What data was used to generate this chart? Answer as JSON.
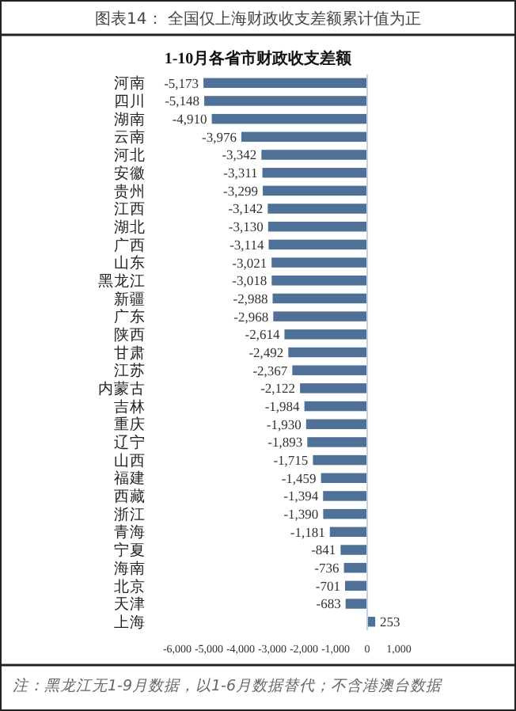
{
  "chart_data": {
    "type": "bar",
    "orientation": "horizontal",
    "title": "图表14：  全国仅上海财政收支差额累计值为正",
    "subtitle": "1-10月各省市财政收支差额",
    "categories": [
      "河南",
      "四川",
      "湖南",
      "云南",
      "河北",
      "安徽",
      "贵州",
      "江西",
      "湖北",
      "广西",
      "山东",
      "黑龙江",
      "新疆",
      "广东",
      "陕西",
      "甘肃",
      "江苏",
      "内蒙古",
      "吉林",
      "重庆",
      "辽宁",
      "山西",
      "福建",
      "西藏",
      "浙江",
      "青海",
      "宁夏",
      "海南",
      "北京",
      "天津",
      "上海"
    ],
    "values": [
      -5173,
      -5148,
      -4910,
      -3976,
      -3342,
      -3311,
      -3299,
      -3142,
      -3130,
      -3114,
      -3021,
      -3018,
      -2988,
      -2968,
      -2614,
      -2492,
      -2367,
      -2122,
      -1984,
      -1930,
      -1893,
      -1715,
      -1459,
      -1394,
      -1390,
      -1181,
      -841,
      -736,
      -701,
      -683,
      253
    ],
    "value_labels": [
      "-5,173",
      "-5,148",
      "-4,910",
      "-3,976",
      "-3,342",
      "-3,311",
      "-3,299",
      "-3,142",
      "-3,130",
      "-3,114",
      "-3,021",
      "-3,018",
      "-2,988",
      "-2,968",
      "-2,614",
      "-2,492",
      "-2,367",
      "-2,122",
      "-1,984",
      "-1,930",
      "-1,893",
      "-1,715",
      "-1,459",
      "-1,394",
      "-1,390",
      "-1,181",
      "-841",
      "-736",
      "-701",
      "-683",
      "253"
    ],
    "color": "#4f7198",
    "xlim": [
      -6000,
      1000
    ],
    "xticks": [
      {
        "value": -6000,
        "label": "-6,000"
      },
      {
        "value": -5000,
        "label": "-5,000"
      },
      {
        "value": -4000,
        "label": "-4,000"
      },
      {
        "value": -3000,
        "label": "-3,000"
      },
      {
        "value": -2000,
        "label": "-2,000"
      },
      {
        "value": -1000,
        "label": "-1,000"
      },
      0,
      {
        "value": 1000,
        "label": "1,000"
      }
    ],
    "grid": false,
    "ref_lines": [
      {
        "axis": "x",
        "value": 0,
        "color": "#bcd3ea"
      }
    ],
    "annotations": [
      "注：黑龙江无1-9月数据，以1-6月数据替代；不含港澳台数据"
    ]
  }
}
